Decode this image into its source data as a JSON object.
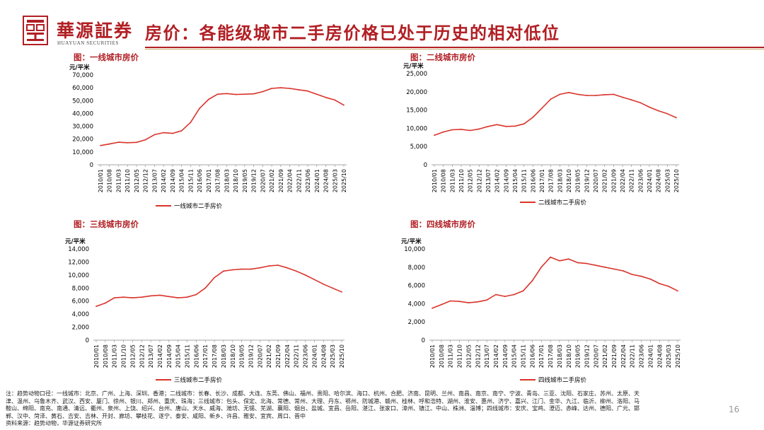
{
  "brand": {
    "name": "華源証券",
    "name_en": "HUAYUAN SECURITIES"
  },
  "header": {
    "title": "房价：各能级城市二手房价格已处于历史的相对低位"
  },
  "colors": {
    "accent": "#b11f24",
    "series": "#d9342b",
    "gold": "#c9a96e"
  },
  "chart_data": [
    {
      "type": "line",
      "title": "图：一线城市房价",
      "ylabel": "元/平米",
      "ylim": [
        0,
        70000
      ],
      "yticks": [
        0,
        10000,
        20000,
        30000,
        40000,
        50000,
        60000,
        70000
      ],
      "ytick_labels": [
        "0",
        "10,000",
        "20,000",
        "30,000",
        "40,000",
        "50,000",
        "60,000",
        "70,000"
      ],
      "xtick_labels": [
        "2010/01",
        "2010/08",
        "2011/03",
        "2011/10",
        "2012/05",
        "2012/12",
        "2013/07",
        "2014/02",
        "2014/09",
        "2015/04",
        "2015/11",
        "2016/06",
        "2017/01",
        "2017/08",
        "2018/03",
        "2018/10",
        "2019/05",
        "2019/12",
        "2020/07",
        "2021/02",
        "2021/09",
        "2022/04",
        "2022/11",
        "2023/06",
        "2024/01",
        "2024/08",
        "2025/03",
        "2025/10"
      ],
      "series": [
        {
          "name": "一线城市二手房价",
          "values": [
            15000,
            16200,
            17600,
            17200,
            17500,
            19500,
            23500,
            25000,
            24500,
            26500,
            33000,
            44000,
            51000,
            55000,
            55500,
            54800,
            55000,
            55300,
            57000,
            59500,
            60000,
            59500,
            58500,
            57500,
            55000,
            52500,
            50500,
            46500
          ]
        }
      ]
    },
    {
      "type": "line",
      "title": "图：二线城市房价",
      "ylabel": "元/平米",
      "ylim": [
        0,
        25000
      ],
      "yticks": [
        0,
        5000,
        10000,
        15000,
        20000,
        25000
      ],
      "ytick_labels": [
        "0",
        "5,000",
        "10,000",
        "15,000",
        "20,000",
        "25,000"
      ],
      "xtick_labels": [
        "2010/01",
        "2010/08",
        "2011/03",
        "2011/10",
        "2012/05",
        "2012/12",
        "2013/07",
        "2014/02",
        "2014/09",
        "2015/04",
        "2015/11",
        "2016/06",
        "2017/01",
        "2017/08",
        "2018/03",
        "2018/10",
        "2019/05",
        "2019/12",
        "2020/07",
        "2021/02",
        "2021/09",
        "2022/04",
        "2022/11",
        "2023/06",
        "2024/01",
        "2024/08",
        "2025/03",
        "2025/10"
      ],
      "series": [
        {
          "name": "二线城市二手房价",
          "values": [
            8100,
            9000,
            9600,
            9700,
            9400,
            9800,
            10500,
            11000,
            10500,
            10600,
            11200,
            13000,
            15500,
            18000,
            19300,
            19800,
            19300,
            19000,
            19000,
            19200,
            19300,
            18500,
            17800,
            17000,
            15800,
            14800,
            14000,
            12900
          ]
        }
      ]
    },
    {
      "type": "line",
      "title": "图：三线城市房价",
      "ylabel": "元/平米",
      "ylim": [
        0,
        14000
      ],
      "yticks": [
        0,
        2000,
        4000,
        6000,
        8000,
        10000,
        12000,
        14000
      ],
      "ytick_labels": [
        "0",
        "2,000",
        "4,000",
        "6,000",
        "8,000",
        "10,000",
        "12,000",
        "14,000"
      ],
      "xtick_labels": [
        "2010/01",
        "2010/08",
        "2011/03",
        "2011/10",
        "2012/05",
        "2012/12",
        "2013/07",
        "2014/02",
        "2014/09",
        "2015/04",
        "2015/11",
        "2016/06",
        "2017/01",
        "2017/08",
        "2018/03",
        "2018/10",
        "2019/05",
        "2019/12",
        "2020/07",
        "2021/02",
        "2021/09",
        "2022/04",
        "2022/11",
        "2023/06",
        "2024/01",
        "2024/08",
        "2025/03",
        "2025/10"
      ],
      "series": [
        {
          "name": "三线城市二手房价",
          "values": [
            5200,
            5700,
            6500,
            6600,
            6500,
            6600,
            6800,
            6900,
            6700,
            6500,
            6600,
            7000,
            8000,
            9600,
            10600,
            10800,
            10900,
            10900,
            11100,
            11400,
            11500,
            11100,
            10600,
            10000,
            9300,
            8600,
            8000,
            7400
          ]
        }
      ]
    },
    {
      "type": "line",
      "title": "图：四线城市房价",
      "ylabel": "元/平米",
      "ylim": [
        0,
        10000
      ],
      "yticks": [
        0,
        2000,
        4000,
        6000,
        8000,
        10000
      ],
      "ytick_labels": [
        "0",
        "2,000",
        "4,000",
        "6,000",
        "8,000",
        "10,000"
      ],
      "xtick_labels": [
        "2010/01",
        "2010/08",
        "2011/03",
        "2011/10",
        "2012/05",
        "2012/12",
        "2013/07",
        "2014/02",
        "2014/09",
        "2015/04",
        "2015/11",
        "2016/06",
        "2017/01",
        "2017/08",
        "2018/03",
        "2018/10",
        "2019/05",
        "2019/12",
        "2020/07",
        "2021/02",
        "2021/09",
        "2022/04",
        "2022/11",
        "2023/06",
        "2024/01",
        "2024/08",
        "2025/03",
        "2025/10"
      ],
      "series": [
        {
          "name": "四线城市二手房价",
          "values": [
            3500,
            3900,
            4300,
            4250,
            4100,
            4200,
            4400,
            5000,
            4800,
            5000,
            5400,
            6500,
            8000,
            9100,
            8700,
            8900,
            8500,
            8400,
            8200,
            8000,
            7800,
            7600,
            7200,
            7000,
            6700,
            6200,
            5900,
            5400
          ]
        }
      ]
    }
  ],
  "footnote": {
    "lines": [
      "注：趋势动物口径：一线城市：北京、广州、上海、深圳、香港；二线城市：长春、长沙、成都、大连、东莞、佛山、福州、贵阳、哈尔滨、海口、杭州、合肥、济南、昆明、兰州、南昌、南京、南宁、宁波、青岛、三亚、沈阳、石家庄、苏州、太原、天",
      "津、温州、乌鲁木齐、武汉、西安、厦门、徐州、银川、郑州、重庆、珠海；三线城市：包头、保定、北海、常德、常州、大理、丹东、鄂州、防城港、赣州、桂林、呼和浩特、湖州、淮安、惠州、济宁、嘉兴、江门、金华、九江、临沂、柳州、洛阳、马",
      "鞍山、绵阳、南充、南通、清远、衢州、泉州、上饶、绍兴、台州、唐山、天水、威海、潍坊、无锡、芜湖、襄阳、烟台、盐城、宜昌、岳阳、湛江、张家口、漳州、镇江、中山、株洲、淄博；四线城市：安庆、宝鸡、澄迈、赤峰、达州、德阳、广元、邯",
      "郸、汉中、菏泽、黄石、吉安、吉林、开封、廊坊、攀枝花、遂宁、泰安、咸阳、新乡、许昌、雅安、宜宾、周口、晋中",
      "资料来源：趋势动物，华源证券研究所"
    ]
  },
  "page_number": "16"
}
